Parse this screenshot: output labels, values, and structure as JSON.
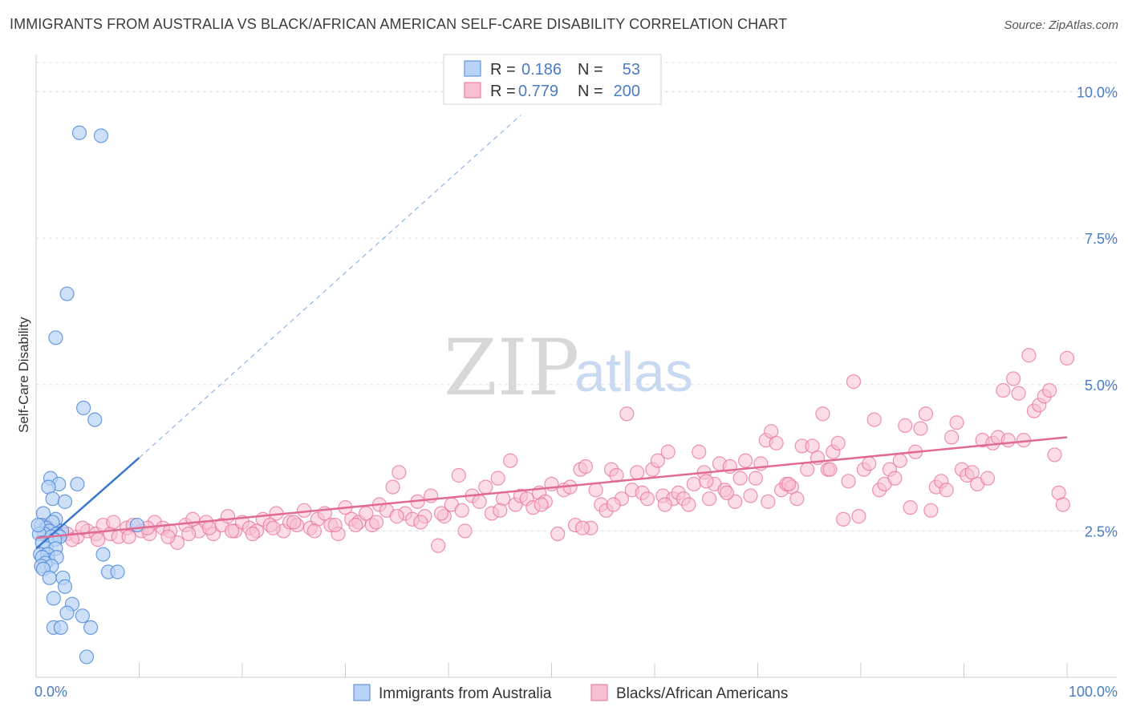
{
  "title": "IMMIGRANTS FROM AUSTRALIA VS BLACK/AFRICAN AMERICAN SELF-CARE DISABILITY CORRELATION CHART",
  "source": "Source: ZipAtlas.com",
  "watermark": {
    "zip": "ZIP",
    "atlas": "atlas"
  },
  "colors": {
    "blue": "#4a86d8",
    "blue_fill": "#b8d3f5",
    "pink": "#e8709a",
    "pink_fill": "#f7bfd3",
    "tick_text": "#4a7cc4"
  },
  "legend": {
    "rows": [
      {
        "r_label": "R =",
        "r_value": "0.186",
        "n_label": "N =",
        "n_value": "53"
      },
      {
        "r_label": "R =",
        "r_value": "0.779",
        "n_label": "N =",
        "n_value": "200"
      }
    ]
  },
  "bottom_legend": [
    "Immigrants from Australia",
    "Blacks/African Americans"
  ],
  "chart_data": {
    "type": "scatter",
    "title": "IMMIGRANTS FROM AUSTRALIA VS BLACK/AFRICAN AMERICAN SELF-CARE DISABILITY CORRELATION CHART",
    "xlabel": "",
    "ylabel": "Self-Care Disability",
    "xlim": [
      0,
      100
    ],
    "ylim": [
      0,
      10.5
    ],
    "x_tick_labels": [
      "0.0%",
      "100.0%"
    ],
    "y_ticks": [
      2.5,
      5.0,
      7.5,
      10.0
    ],
    "y_tick_labels": [
      "2.5%",
      "5.0%",
      "7.5%",
      "10.0%"
    ],
    "grid": true,
    "legend_position": "top-center",
    "series": [
      {
        "name": "Immigrants from Australia",
        "color": "#4a86d8",
        "trend": {
          "x0": 0,
          "y0": 2.2,
          "x1": 10,
          "y1": 3.75,
          "dashed_extension_to": [
            47,
            9.6
          ]
        },
        "points": [
          [
            4.2,
            9.3
          ],
          [
            6.3,
            9.25
          ],
          [
            3.0,
            6.55
          ],
          [
            1.9,
            5.8
          ],
          [
            4.6,
            4.6
          ],
          [
            5.7,
            4.4
          ],
          [
            1.4,
            3.4
          ],
          [
            2.2,
            3.3
          ],
          [
            4.0,
            3.3
          ],
          [
            1.2,
            3.25
          ],
          [
            1.6,
            3.05
          ],
          [
            2.8,
            3.0
          ],
          [
            0.7,
            2.8
          ],
          [
            1.9,
            2.7
          ],
          [
            1.6,
            2.65
          ],
          [
            0.5,
            2.6
          ],
          [
            1.0,
            2.55
          ],
          [
            2.5,
            2.5
          ],
          [
            1.3,
            2.5
          ],
          [
            0.8,
            2.45
          ],
          [
            2.0,
            2.45
          ],
          [
            0.3,
            2.45
          ],
          [
            1.5,
            2.4
          ],
          [
            2.3,
            2.4
          ],
          [
            1.8,
            2.35
          ],
          [
            0.6,
            2.3
          ],
          [
            9.8,
            2.6
          ],
          [
            1.0,
            2.2
          ],
          [
            1.9,
            2.2
          ],
          [
            0.4,
            2.1
          ],
          [
            1.1,
            2.1
          ],
          [
            6.5,
            2.1
          ],
          [
            1.2,
            2.0
          ],
          [
            0.6,
            2.05
          ],
          [
            2.0,
            2.05
          ],
          [
            0.9,
            1.95
          ],
          [
            0.5,
            1.9
          ],
          [
            1.5,
            1.9
          ],
          [
            0.7,
            1.85
          ],
          [
            7.0,
            1.8
          ],
          [
            7.9,
            1.8
          ],
          [
            1.3,
            1.7
          ],
          [
            2.6,
            1.7
          ],
          [
            2.8,
            1.55
          ],
          [
            1.7,
            1.35
          ],
          [
            3.5,
            1.25
          ],
          [
            3.0,
            1.1
          ],
          [
            4.5,
            1.05
          ],
          [
            1.7,
            0.85
          ],
          [
            2.4,
            0.85
          ],
          [
            5.3,
            0.85
          ],
          [
            4.9,
            0.35
          ],
          [
            0.2,
            2.6
          ]
        ]
      },
      {
        "name": "Blacks/African Americans",
        "color": "#e8709a",
        "trend": {
          "x0": 0,
          "y0": 2.38,
          "x1": 100,
          "y1": 4.1
        },
        "points": [
          [
            1.0,
            2.6
          ],
          [
            2.0,
            2.5
          ],
          [
            3.0,
            2.45
          ],
          [
            4.0,
            2.4
          ],
          [
            5.0,
            2.5
          ],
          [
            5.8,
            2.45
          ],
          [
            6.5,
            2.6
          ],
          [
            7.2,
            2.45
          ],
          [
            8.0,
            2.4
          ],
          [
            8.8,
            2.55
          ],
          [
            9.4,
            2.6
          ],
          [
            10.2,
            2.5
          ],
          [
            11.0,
            2.45
          ],
          [
            11.5,
            2.65
          ],
          [
            12.3,
            2.55
          ],
          [
            13.0,
            2.5
          ],
          [
            13.7,
            2.3
          ],
          [
            14.5,
            2.6
          ],
          [
            15.2,
            2.7
          ],
          [
            15.8,
            2.5
          ],
          [
            16.5,
            2.65
          ],
          [
            17.2,
            2.45
          ],
          [
            18.0,
            2.6
          ],
          [
            18.6,
            2.75
          ],
          [
            19.3,
            2.5
          ],
          [
            20.0,
            2.65
          ],
          [
            20.7,
            2.55
          ],
          [
            21.4,
            2.5
          ],
          [
            22.0,
            2.7
          ],
          [
            22.7,
            2.6
          ],
          [
            23.3,
            2.8
          ],
          [
            24.0,
            2.5
          ],
          [
            24.6,
            2.65
          ],
          [
            25.3,
            2.6
          ],
          [
            26.0,
            2.85
          ],
          [
            26.6,
            2.55
          ],
          [
            27.3,
            2.7
          ],
          [
            28.0,
            2.8
          ],
          [
            28.6,
            2.6
          ],
          [
            29.3,
            2.45
          ],
          [
            30.0,
            2.9
          ],
          [
            30.6,
            2.7
          ],
          [
            31.3,
            2.65
          ],
          [
            32.0,
            2.8
          ],
          [
            32.6,
            2.6
          ],
          [
            33.3,
            2.95
          ],
          [
            34.0,
            2.85
          ],
          [
            34.6,
            3.25
          ],
          [
            35.2,
            3.5
          ],
          [
            35.8,
            2.8
          ],
          [
            36.5,
            2.7
          ],
          [
            37.0,
            3.0
          ],
          [
            37.7,
            2.75
          ],
          [
            38.3,
            3.1
          ],
          [
            39.0,
            2.25
          ],
          [
            39.6,
            2.75
          ],
          [
            40.3,
            2.95
          ],
          [
            41.0,
            3.45
          ],
          [
            41.6,
            2.5
          ],
          [
            42.3,
            3.1
          ],
          [
            43.0,
            3.0
          ],
          [
            43.6,
            3.25
          ],
          [
            44.2,
            2.8
          ],
          [
            44.8,
            3.4
          ],
          [
            45.3,
            3.05
          ],
          [
            46.0,
            3.7
          ],
          [
            46.5,
            2.95
          ],
          [
            47.0,
            3.1
          ],
          [
            47.6,
            3.05
          ],
          [
            48.2,
            2.9
          ],
          [
            48.8,
            3.15
          ],
          [
            49.4,
            3.0
          ],
          [
            50.0,
            3.3
          ],
          [
            50.6,
            2.45
          ],
          [
            51.2,
            3.2
          ],
          [
            51.8,
            3.25
          ],
          [
            52.3,
            2.6
          ],
          [
            52.8,
            3.55
          ],
          [
            53.3,
            3.6
          ],
          [
            53.8,
            2.55
          ],
          [
            54.3,
            3.2
          ],
          [
            54.8,
            2.95
          ],
          [
            55.3,
            2.85
          ],
          [
            55.8,
            3.55
          ],
          [
            56.3,
            3.45
          ],
          [
            56.8,
            3.05
          ],
          [
            57.3,
            4.5
          ],
          [
            57.8,
            3.2
          ],
          [
            58.3,
            3.5
          ],
          [
            58.8,
            3.15
          ],
          [
            59.3,
            3.05
          ],
          [
            59.8,
            3.55
          ],
          [
            60.3,
            3.7
          ],
          [
            60.8,
            3.1
          ],
          [
            61.3,
            3.85
          ],
          [
            61.8,
            3.05
          ],
          [
            62.3,
            3.15
          ],
          [
            62.8,
            3.05
          ],
          [
            63.3,
            2.95
          ],
          [
            63.8,
            3.3
          ],
          [
            64.3,
            3.85
          ],
          [
            64.8,
            3.5
          ],
          [
            65.3,
            3.05
          ],
          [
            65.8,
            3.3
          ],
          [
            66.3,
            3.65
          ],
          [
            66.8,
            3.2
          ],
          [
            67.3,
            3.6
          ],
          [
            67.8,
            3.0
          ],
          [
            68.3,
            3.4
          ],
          [
            68.8,
            3.7
          ],
          [
            69.3,
            3.1
          ],
          [
            69.8,
            3.4
          ],
          [
            70.3,
            3.65
          ],
          [
            70.8,
            4.05
          ],
          [
            71.3,
            4.2
          ],
          [
            71.8,
            4.0
          ],
          [
            72.3,
            3.2
          ],
          [
            72.8,
            3.3
          ],
          [
            73.3,
            3.25
          ],
          [
            73.8,
            3.05
          ],
          [
            74.3,
            3.95
          ],
          [
            74.8,
            3.55
          ],
          [
            75.3,
            3.95
          ],
          [
            75.8,
            3.75
          ],
          [
            76.3,
            4.5
          ],
          [
            76.8,
            3.55
          ],
          [
            77.3,
            3.85
          ],
          [
            77.8,
            4.0
          ],
          [
            78.3,
            2.7
          ],
          [
            78.8,
            3.35
          ],
          [
            79.3,
            5.05
          ],
          [
            79.8,
            2.75
          ],
          [
            80.3,
            3.55
          ],
          [
            80.8,
            3.65
          ],
          [
            81.3,
            4.4
          ],
          [
            81.8,
            3.2
          ],
          [
            82.3,
            3.3
          ],
          [
            82.8,
            3.55
          ],
          [
            83.3,
            3.4
          ],
          [
            83.8,
            3.7
          ],
          [
            84.3,
            4.3
          ],
          [
            84.8,
            2.9
          ],
          [
            85.3,
            3.85
          ],
          [
            85.8,
            4.25
          ],
          [
            86.3,
            4.5
          ],
          [
            86.8,
            2.85
          ],
          [
            87.3,
            3.25
          ],
          [
            87.8,
            3.35
          ],
          [
            88.3,
            3.2
          ],
          [
            88.8,
            4.1
          ],
          [
            89.3,
            4.35
          ],
          [
            89.8,
            3.55
          ],
          [
            90.3,
            3.45
          ],
          [
            90.8,
            3.5
          ],
          [
            91.3,
            3.3
          ],
          [
            91.8,
            4.05
          ],
          [
            92.3,
            3.4
          ],
          [
            92.8,
            4.0
          ],
          [
            93.3,
            4.1
          ],
          [
            93.8,
            4.9
          ],
          [
            94.3,
            4.05
          ],
          [
            94.8,
            5.1
          ],
          [
            95.3,
            4.85
          ],
          [
            95.8,
            4.05
          ],
          [
            96.3,
            5.5
          ],
          [
            96.8,
            4.55
          ],
          [
            97.3,
            4.65
          ],
          [
            97.8,
            4.8
          ],
          [
            98.3,
            4.9
          ],
          [
            98.8,
            3.8
          ],
          [
            99.2,
            3.15
          ],
          [
            99.6,
            2.95
          ],
          [
            100.0,
            5.45
          ],
          [
            2.5,
            2.45
          ],
          [
            3.5,
            2.35
          ],
          [
            4.5,
            2.55
          ],
          [
            6.0,
            2.35
          ],
          [
            7.5,
            2.65
          ],
          [
            9.0,
            2.4
          ],
          [
            10.8,
            2.55
          ],
          [
            12.8,
            2.4
          ],
          [
            14.8,
            2.45
          ],
          [
            16.8,
            2.55
          ],
          [
            19.0,
            2.5
          ],
          [
            21.0,
            2.45
          ],
          [
            23.0,
            2.55
          ],
          [
            25.0,
            2.65
          ],
          [
            27.0,
            2.5
          ],
          [
            29.0,
            2.6
          ],
          [
            31.0,
            2.6
          ],
          [
            33.0,
            2.65
          ],
          [
            35.0,
            2.75
          ],
          [
            37.3,
            2.65
          ],
          [
            39.3,
            2.8
          ],
          [
            41.3,
            2.85
          ],
          [
            45.0,
            2.85
          ],
          [
            49.0,
            2.95
          ],
          [
            53.0,
            2.55
          ],
          [
            56.0,
            2.95
          ],
          [
            61.0,
            2.95
          ],
          [
            65.0,
            3.35
          ],
          [
            67.0,
            3.15
          ],
          [
            71.0,
            3.0
          ],
          [
            73.0,
            3.3
          ],
          [
            77.0,
            3.55
          ]
        ]
      }
    ]
  }
}
